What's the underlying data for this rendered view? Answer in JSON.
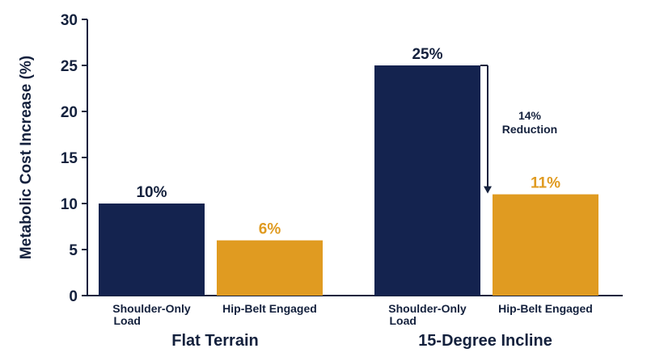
{
  "chart_data": {
    "type": "bar",
    "ylabel": "Metabolic Cost Increase (%)",
    "ylim": [
      0,
      30
    ],
    "yticks": [
      0,
      5,
      10,
      15,
      20,
      25,
      30
    ],
    "grid": false,
    "groups": [
      {
        "label": "Flat Terrain",
        "bars": [
          {
            "category": [
              "Shoulder-Only",
              "Load"
            ],
            "value": 10,
            "label": "10%",
            "color": "#14234f"
          },
          {
            "category": [
              "Hip-Belt Engaged"
            ],
            "value": 6,
            "label": "6%",
            "color": "#e09b21"
          }
        ]
      },
      {
        "label": "15-Degree Incline",
        "bars": [
          {
            "category": [
              "Shoulder-Only",
              "Load"
            ],
            "value": 25,
            "label": "25%",
            "color": "#14234f"
          },
          {
            "category": [
              "Hip-Belt Engaged"
            ],
            "value": 11,
            "label": "11%",
            "color": "#e09b21"
          }
        ]
      }
    ],
    "annotation": {
      "lines": [
        "14%",
        "Reduction"
      ],
      "from_value": 25,
      "to_value": 11
    },
    "colors": {
      "axis": "#14213d",
      "shoulder": "#14234f",
      "hipbelt": "#e09b21"
    }
  }
}
